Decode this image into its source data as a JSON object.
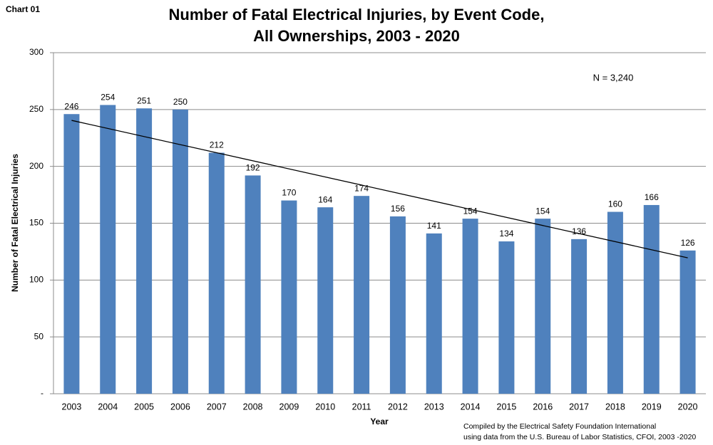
{
  "chart_data": {
    "type": "bar",
    "label": "Chart 01",
    "title": [
      "Number of Fatal Electrical Injuries, by Event Code,",
      "All Ownerships, 2003 - 2020"
    ],
    "annotation": "N = 3,240",
    "source": [
      "Compiled by the Electrical Safety Foundation International",
      "using data from the U.S. Bureau of Labor Statistics, CFOI, 2003 -2020"
    ],
    "x_label": "Year",
    "y_label": "Number of Fatal Electrical Injuries",
    "categories": [
      "2003",
      "2004",
      "2005",
      "2006",
      "2007",
      "2008",
      "2009",
      "2010",
      "2011",
      "2012",
      "2013",
      "2014",
      "2015",
      "2016",
      "2017",
      "2018",
      "2019",
      "2020"
    ],
    "values": [
      246,
      254,
      251,
      250,
      212,
      192,
      170,
      164,
      174,
      156,
      141,
      154,
      134,
      154,
      136,
      160,
      166,
      126
    ],
    "color": "#4f81bd",
    "ylim": [
      0,
      300
    ],
    "yticks": [
      {
        "value": 0,
        "label": "-"
      },
      50,
      100,
      150,
      200,
      250,
      300
    ],
    "grid": true,
    "trendline": true
  }
}
